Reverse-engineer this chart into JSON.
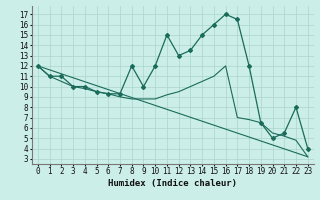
{
  "xlabel": "Humidex (Indice chaleur)",
  "bg_color": "#cceee8",
  "grid_color": "#aad4cc",
  "line_color": "#1a6b5a",
  "xlim": [
    -0.5,
    23.5
  ],
  "ylim": [
    2.5,
    17.8
  ],
  "xticks": [
    0,
    1,
    2,
    3,
    4,
    5,
    6,
    7,
    8,
    9,
    10,
    11,
    12,
    13,
    14,
    15,
    16,
    17,
    18,
    19,
    20,
    21,
    22,
    23
  ],
  "yticks": [
    3,
    4,
    5,
    6,
    7,
    8,
    9,
    10,
    11,
    12,
    13,
    14,
    15,
    16,
    17
  ],
  "curve1_x": [
    0,
    1,
    2,
    3,
    4,
    5,
    6,
    7,
    8,
    9,
    10,
    11,
    12,
    13,
    14,
    15,
    16,
    17,
    18,
    19,
    20,
    21,
    22,
    23
  ],
  "curve1_y": [
    12.0,
    11.0,
    11.0,
    10.0,
    10.0,
    9.5,
    9.3,
    9.3,
    12.0,
    10.0,
    12.0,
    15.0,
    13.0,
    13.5,
    15.0,
    16.0,
    17.0,
    16.5,
    12.0,
    6.5,
    5.0,
    5.5,
    8.0,
    4.0
  ],
  "curve2_x": [
    0,
    1,
    2,
    3,
    4,
    5,
    6,
    7,
    8,
    9,
    10,
    11,
    12,
    13,
    14,
    15,
    16,
    17,
    18,
    19,
    20,
    21,
    22,
    23
  ],
  "curve2_y": [
    12.0,
    11.0,
    10.5,
    10.0,
    9.8,
    9.5,
    9.3,
    9.0,
    8.8,
    8.8,
    8.8,
    9.2,
    9.5,
    10.0,
    10.5,
    11.0,
    12.0,
    7.0,
    6.8,
    6.5,
    5.5,
    5.2,
    4.8,
    3.2
  ],
  "line3_x": [
    0,
    23
  ],
  "line3_y": [
    12.0,
    3.2
  ]
}
